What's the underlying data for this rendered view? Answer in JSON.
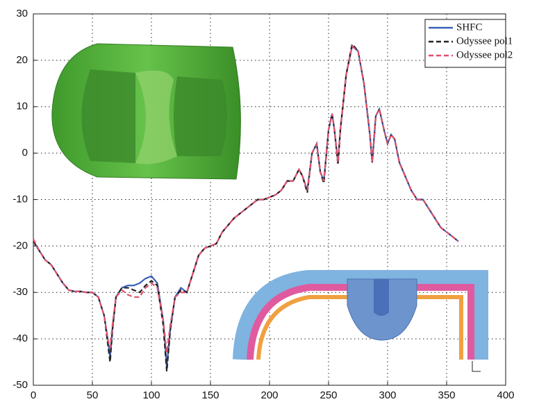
{
  "chart_data": {
    "type": "line",
    "x": [
      0,
      5,
      10,
      15,
      20,
      25,
      30,
      35,
      40,
      45,
      50,
      55,
      60,
      63,
      65,
      67,
      70,
      75,
      80,
      85,
      90,
      95,
      100,
      105,
      110,
      113,
      116,
      120,
      125,
      130,
      135,
      140,
      145,
      150,
      155,
      160,
      165,
      170,
      175,
      180,
      185,
      190,
      195,
      200,
      205,
      210,
      215,
      220,
      225,
      228,
      232,
      236,
      240,
      243,
      246,
      250,
      253,
      255,
      258,
      260,
      265,
      270,
      275,
      280,
      285,
      287,
      290,
      293,
      297,
      300,
      303,
      306,
      310,
      315,
      320,
      325,
      330,
      335,
      340,
      345,
      350,
      355,
      360
    ],
    "series": [
      {
        "name": "SHFC",
        "color": "#3a5fb8",
        "dash": false,
        "values": [
          -19,
          -21,
          -23,
          -24,
          -26,
          -28,
          -29.5,
          -29.8,
          -29.8,
          -30,
          -30,
          -31,
          -35,
          -40,
          -44,
          -38,
          -31,
          -29,
          -28.5,
          -28.5,
          -28,
          -27,
          -26.5,
          -28,
          -36,
          -46,
          -38,
          -31,
          -29,
          -30,
          -26,
          -22,
          -20.5,
          -20,
          -19.5,
          -17,
          -15.5,
          -14,
          -13,
          -12,
          -11,
          -10,
          -10,
          -9.5,
          -9,
          -8,
          -6,
          -6,
          -3.5,
          -5,
          -8,
          0,
          2,
          -4,
          -6,
          5,
          8.5,
          5,
          -2,
          5,
          17,
          23,
          22,
          15,
          4,
          -2,
          8,
          9.5,
          5,
          2,
          4,
          3,
          -2,
          -5,
          -8,
          -10,
          -10,
          -12,
          -14,
          -16,
          -17,
          -18,
          -19
        ]
      },
      {
        "name": "Odyssee pol1",
        "color": "#222222",
        "dash": true,
        "values": [
          -19,
          -21,
          -23,
          -24,
          -26,
          -28,
          -29.5,
          -29.8,
          -29.8,
          -30,
          -30,
          -31,
          -35,
          -41,
          -45,
          -38,
          -31,
          -29,
          -29,
          -29.5,
          -30,
          -28.5,
          -27.5,
          -28.5,
          -37,
          -47,
          -38,
          -31,
          -29.5,
          -30,
          -26,
          -22,
          -20.5,
          -20,
          -19.5,
          -17,
          -15.5,
          -14,
          -13,
          -12,
          -11,
          -10,
          -10,
          -9.5,
          -9,
          -8,
          -6,
          -6,
          -3.5,
          -5,
          -8.5,
          0,
          2,
          -4,
          -6.5,
          5,
          8.5,
          5,
          -2.5,
          5,
          17,
          23.5,
          22,
          15,
          4,
          -2,
          8,
          9.5,
          5,
          2,
          4,
          3,
          -2,
          -5,
          -8,
          -10,
          -10,
          -12,
          -14,
          -16,
          -17,
          -18,
          -19
        ]
      },
      {
        "name": "Odyssee pol2",
        "color": "#e0506a",
        "dash": true,
        "values": [
          -18.5,
          -21,
          -23,
          -24,
          -26,
          -28,
          -29.5,
          -29.8,
          -29.8,
          -30,
          -30,
          -31,
          -35,
          -40,
          -42,
          -37,
          -31,
          -29.5,
          -30.5,
          -31,
          -31,
          -29,
          -28,
          -29,
          -36,
          -43,
          -37,
          -31,
          -30,
          -30,
          -26,
          -22,
          -20.5,
          -20,
          -19.5,
          -17,
          -15.5,
          -14,
          -13,
          -12,
          -11,
          -10,
          -10,
          -9.5,
          -9,
          -8,
          -6,
          -6,
          -3.5,
          -5,
          -8,
          0,
          2,
          -4,
          -6,
          5,
          8.5,
          5,
          -2,
          5,
          17,
          23,
          22,
          15,
          4,
          -2,
          8,
          9.5,
          5,
          2,
          4,
          3,
          -2,
          -5,
          -8,
          -10,
          -10,
          -12,
          -14,
          -16,
          -17,
          -18,
          -19
        ]
      }
    ],
    "xlim": [
      0,
      400
    ],
    "xticks": [
      0,
      50,
      100,
      150,
      200,
      250,
      300,
      350,
      400
    ],
    "ylim": [
      -50,
      30
    ],
    "yticks": [
      -50,
      -40,
      -30,
      -20,
      -10,
      0,
      10,
      20,
      30
    ],
    "grid": true,
    "legend": "upper right"
  }
}
